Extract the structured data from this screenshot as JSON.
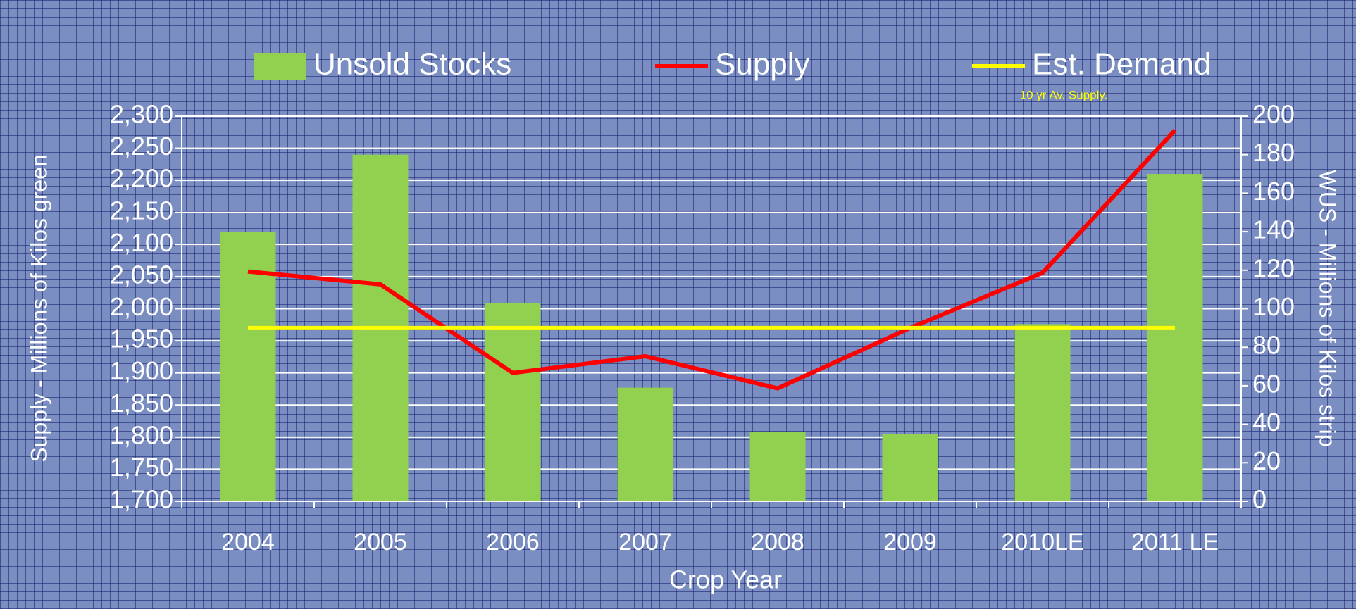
{
  "chart_data": {
    "type": "bar",
    "annotations": [
      "10 yr Av. Supply."
    ],
    "x_label": "Crop Year",
    "y_label": "Supply  - Millions of Kilos green",
    "y2_label": "WUS - Millions of Kilos strip",
    "categories": [
      "2004",
      "2005",
      "2006",
      "2007",
      "2008",
      "2009",
      "2010LE",
      "2011 LE"
    ],
    "series": [
      {
        "name": "Unsold Stocks",
        "type": "bar",
        "axis": "y2",
        "color": "#92d050",
        "values": [
          140,
          180,
          103,
          59,
          36,
          35,
          92,
          170
        ]
      },
      {
        "name": "Supply",
        "type": "line",
        "color": "#ff0000",
        "values": [
          2058,
          2038,
          1900,
          1926,
          1876,
          1970,
          2056,
          2278
        ]
      },
      {
        "name": "Est. Demand",
        "type": "line",
        "color": "#ffff00",
        "values": [
          1970,
          1970,
          1970,
          1970,
          1970,
          1970,
          1970,
          1970
        ]
      }
    ],
    "ylim": [
      1700,
      2300
    ],
    "yticks": [
      {
        "value": 1700,
        "label": "1,700"
      },
      {
        "value": 1750,
        "label": "1,750"
      },
      {
        "value": 1800,
        "label": "1,800"
      },
      {
        "value": 1850,
        "label": "1,850"
      },
      {
        "value": 1900,
        "label": "1,900"
      },
      {
        "value": 1950,
        "label": "1,950"
      },
      {
        "value": 2000,
        "label": "2,000"
      },
      {
        "value": 2050,
        "label": "2,050"
      },
      {
        "value": 2100,
        "label": "2,100"
      },
      {
        "value": 2150,
        "label": "2,150"
      },
      {
        "value": 2200,
        "label": "2,200"
      },
      {
        "value": 2250,
        "label": "2,250"
      },
      {
        "value": 2300,
        "label": "2,300"
      }
    ],
    "y2lim": [
      0,
      200
    ],
    "y2ticks": [
      0,
      20,
      40,
      60,
      80,
      100,
      120,
      140,
      160,
      180,
      200
    ],
    "grid": true,
    "legend": "top"
  }
}
